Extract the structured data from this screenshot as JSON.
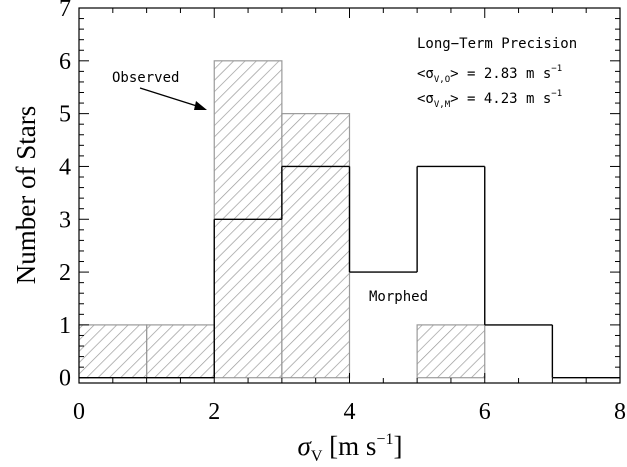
{
  "chart_data": {
    "type": "bar",
    "subtype": "step-histogram",
    "xlabel_symbol": "σ",
    "xlabel_subscript": "V",
    "xlabel_units": " [m s",
    "xlabel_units_exp": "−1",
    "xlabel_units_close": "]",
    "ylabel": "Number of Stars",
    "xlim": [
      0,
      8
    ],
    "ylim": [
      -0.1,
      7
    ],
    "x_ticks": [
      "0",
      "2",
      "4",
      "6",
      "8"
    ],
    "y_ticks": [
      "0",
      "1",
      "2",
      "3",
      "4",
      "5",
      "6",
      "7"
    ],
    "bin_edges": [
      0,
      1,
      2,
      3,
      4,
      5,
      6,
      7,
      8
    ],
    "series": [
      {
        "name": "Observed",
        "style": "hatched",
        "color": "#9a9a9a",
        "values": [
          1,
          1,
          6,
          5,
          0,
          1,
          0,
          0
        ]
      },
      {
        "name": "Morphed",
        "style": "step-outline",
        "color": "#000000",
        "values": [
          0,
          0,
          3,
          4,
          2,
          4,
          1,
          0
        ]
      }
    ],
    "annotations": {
      "title": "Long−Term Precision",
      "line1": {
        "open": "<σ",
        "sub": "V,O",
        "close": "> = 2.83 m s",
        "exp": "−1"
      },
      "line2": {
        "open": "<σ",
        "sub": "V,M",
        "close": "> = 4.23 m s",
        "exp": "−1"
      },
      "observed_label": "Observed",
      "morphed_label": "Morphed"
    },
    "grid": false,
    "legend": "none"
  }
}
